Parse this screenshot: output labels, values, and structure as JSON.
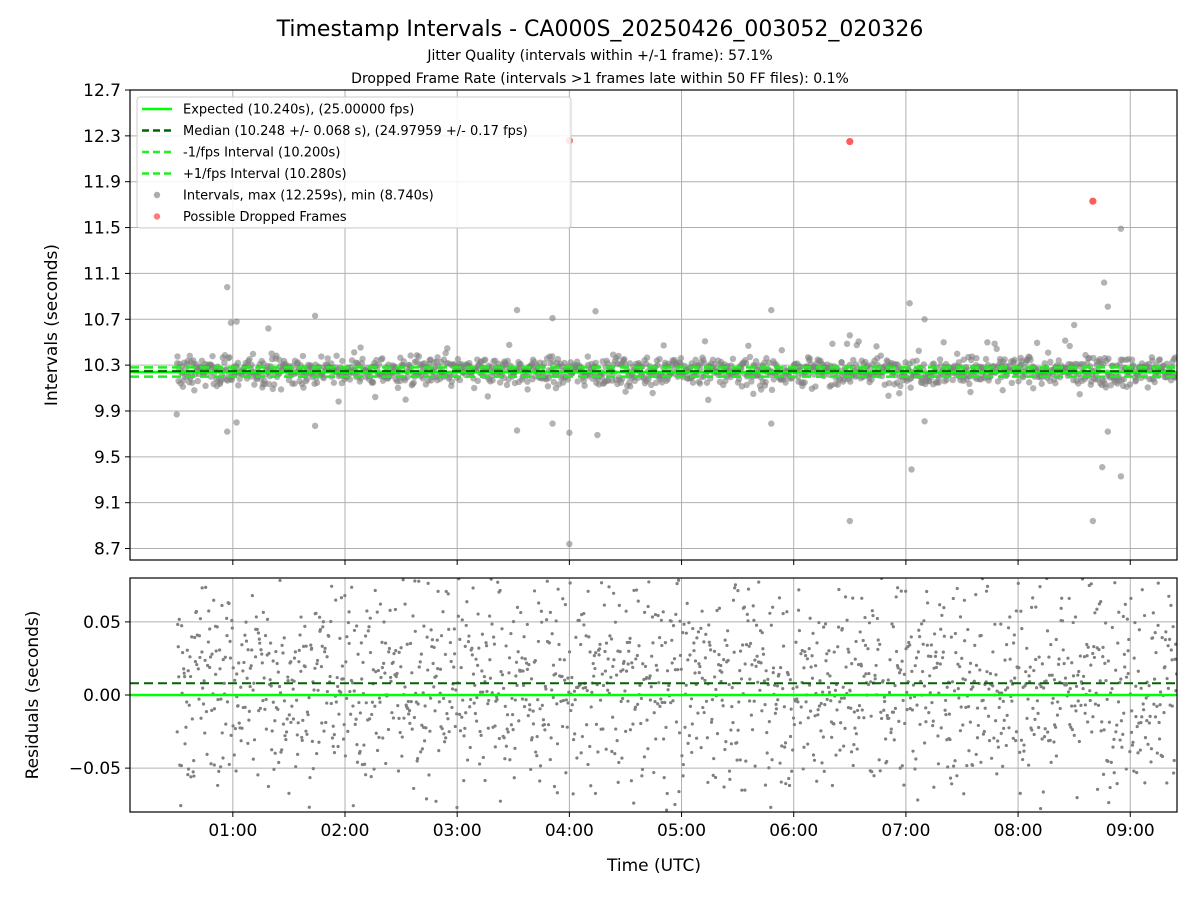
{
  "header": {
    "title": "Timestamp Intervals - CA000S_20250426_003052_020326",
    "subtitle1": "Jitter Quality (intervals within +/-1 frame): 57.1%",
    "subtitle2": "Dropped Frame Rate (intervals >1 frames late within 50 FF files): 0.1%"
  },
  "colors": {
    "expected": "#00ff00",
    "median": "#006400",
    "band": "#22ee22",
    "points": "#808080",
    "dropped": "#ff3333",
    "grid": "#b0b0b0"
  },
  "chart_data": [
    {
      "type": "scatter",
      "panel": "intervals",
      "title": "Timestamp Intervals - CA000S_20250426_003052_020326",
      "xlabel": "",
      "ylabel": "Intervals (seconds)",
      "xlim": [
        "00:05",
        "09:25"
      ],
      "ylim": [
        8.6,
        12.7
      ],
      "yticks": [
        "12.7",
        "12.3",
        "11.9",
        "11.5",
        "11.1",
        "10.7",
        "10.3",
        "9.9",
        "9.5",
        "9.1",
        "8.7"
      ],
      "ytick_values": [
        12.7,
        12.3,
        11.9,
        11.5,
        11.1,
        10.7,
        10.3,
        9.9,
        9.5,
        9.1,
        8.7
      ],
      "grid": true,
      "legend_position": "top-left",
      "series": [
        {
          "name": "Expected (10.240s), (25.00000 fps)",
          "kind": "hline",
          "y": 10.24,
          "style": "solid"
        },
        {
          "name": "Median (10.248 +/- 0.068 s), (24.97959 +/- 0.17 fps)",
          "kind": "hline",
          "y": 10.248,
          "style": "dashed"
        },
        {
          "name": "-1/fps Interval (10.200s)",
          "kind": "hline",
          "y": 10.2,
          "style": "dashed"
        },
        {
          "name": "+1/fps Interval (10.280s)",
          "kind": "hline",
          "y": 10.28,
          "style": "dashed"
        },
        {
          "name": "Intervals, max (12.259s), min (8.740s)",
          "kind": "scatter",
          "center": 10.248,
          "spread": 0.068,
          "outliers": [
            {
              "x": "00:30",
              "y": 9.87
            },
            {
              "x": "00:57",
              "y": 10.98
            },
            {
              "x": "00:57",
              "y": 9.72
            },
            {
              "x": "00:59",
              "y": 10.67
            },
            {
              "x": "01:02",
              "y": 10.68
            },
            {
              "x": "01:02",
              "y": 9.8
            },
            {
              "x": "01:19",
              "y": 10.62
            },
            {
              "x": "01:44",
              "y": 10.73
            },
            {
              "x": "01:44",
              "y": 9.77
            },
            {
              "x": "03:32",
              "y": 10.78
            },
            {
              "x": "03:32",
              "y": 9.73
            },
            {
              "x": "03:51",
              "y": 10.71
            },
            {
              "x": "03:51",
              "y": 9.79
            },
            {
              "x": "04:00",
              "y": 8.74
            },
            {
              "x": "04:00",
              "y": 9.71
            },
            {
              "x": "04:14",
              "y": 10.77
            },
            {
              "x": "04:15",
              "y": 9.69
            },
            {
              "x": "05:48",
              "y": 10.78
            },
            {
              "x": "05:48",
              "y": 9.79
            },
            {
              "x": "06:30",
              "y": 8.94
            },
            {
              "x": "06:30",
              "y": 10.56
            },
            {
              "x": "07:02",
              "y": 10.84
            },
            {
              "x": "07:03",
              "y": 9.39
            },
            {
              "x": "07:10",
              "y": 10.7
            },
            {
              "x": "07:10",
              "y": 9.81
            },
            {
              "x": "08:30",
              "y": 10.65
            },
            {
              "x": "08:40",
              "y": 8.94
            },
            {
              "x": "08:45",
              "y": 9.41
            },
            {
              "x": "08:46",
              "y": 11.02
            },
            {
              "x": "08:48",
              "y": 10.81
            },
            {
              "x": "08:48",
              "y": 9.72
            },
            {
              "x": "08:55",
              "y": 11.49
            },
            {
              "x": "08:55",
              "y": 9.33
            }
          ]
        },
        {
          "name": "Possible Dropped Frames",
          "kind": "scatter",
          "points": [
            {
              "x": "04:00",
              "y": 12.259
            },
            {
              "x": "06:30",
              "y": 12.25
            },
            {
              "x": "08:40",
              "y": 11.73
            }
          ]
        }
      ]
    },
    {
      "type": "scatter",
      "panel": "residuals",
      "xlabel": "Time (UTC)",
      "ylabel": "Residuals (seconds)",
      "xlim": [
        "00:05",
        "09:25"
      ],
      "ylim": [
        -0.08,
        0.08
      ],
      "yticks": [
        "0.05",
        "0.00",
        "−0.05"
      ],
      "ytick_values": [
        0.05,
        0.0,
        -0.05
      ],
      "xticks": [
        "01:00",
        "02:00",
        "03:00",
        "04:00",
        "05:00",
        "06:00",
        "07:00",
        "08:00",
        "09:00"
      ],
      "grid": true,
      "series": [
        {
          "name": "",
          "kind": "hline",
          "y": 0.0,
          "style": "solid"
        },
        {
          "name": "",
          "kind": "hline",
          "y": 0.008,
          "style": "dashed"
        },
        {
          "name": "",
          "kind": "scatter",
          "range": [
            -0.08,
            0.08
          ]
        }
      ]
    }
  ]
}
